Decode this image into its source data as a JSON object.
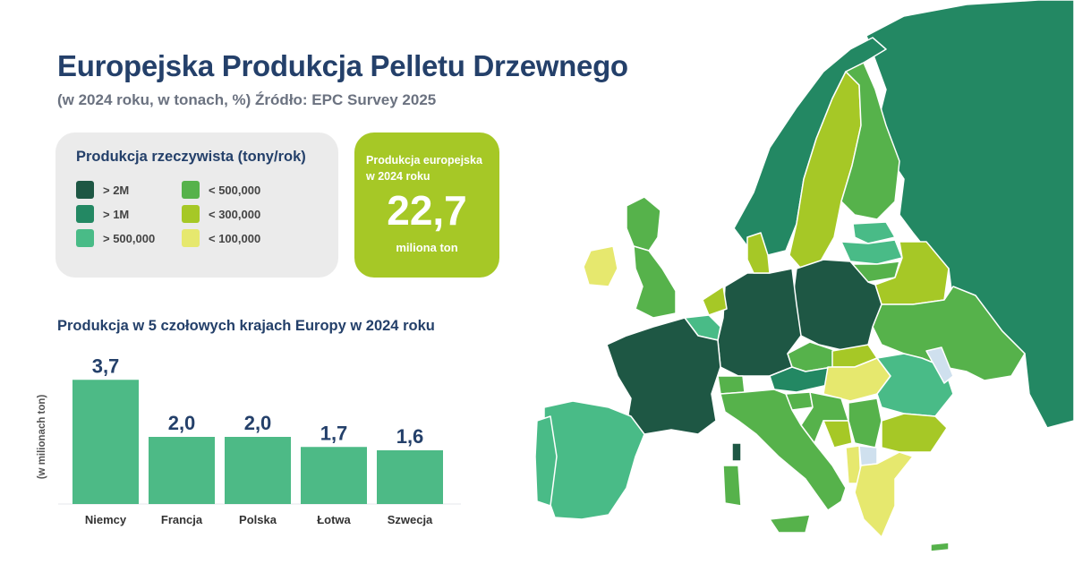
{
  "header": {
    "title": "Europejska Produkcja Pelletu Drzewnego",
    "subtitle": "(w 2024 roku, w tonach, %) Źródło: EPC Survey 2025"
  },
  "legend": {
    "title": "Produkcja rzeczywista (tony/rok)",
    "items": [
      {
        "label": "> 2M",
        "color": "#1e5744"
      },
      {
        "label": "> 1M",
        "color": "#238863"
      },
      {
        "label": "> 500,000",
        "color": "#49bb87"
      },
      {
        "label": "< 500,000",
        "color": "#56b24b"
      },
      {
        "label": "< 300,000",
        "color": "#a6c826"
      },
      {
        "label": "< 100,000",
        "color": "#e6e86e"
      }
    ]
  },
  "stat": {
    "label": "Produkcja europejska w 2024 roku",
    "value": "22,7",
    "unit": "miliona ton"
  },
  "chart_title": "Produkcja w 5 czołowych krajach Europy w 2024 roku",
  "chart_data": {
    "type": "bar",
    "categories": [
      "Niemcy",
      "Francja",
      "Polska",
      "Łotwa",
      "Szwecja"
    ],
    "values": [
      3.7,
      2.0,
      2.0,
      1.7,
      1.6
    ],
    "value_labels": [
      "3,7",
      "2,0",
      "2,0",
      "1,7",
      "1,6"
    ],
    "ylabel": "(w milionach ton)",
    "ylim": [
      0,
      4
    ],
    "bar_color": "#4dba86",
    "grid": false
  },
  "map_colors": {
    "dark": "#1e5744",
    "medium_dark": "#238863",
    "teal": "#49bb87",
    "green": "#56b24b",
    "lime": "#a6c826",
    "pale": "#e6e86e",
    "no_data": "#cfe0ee"
  }
}
